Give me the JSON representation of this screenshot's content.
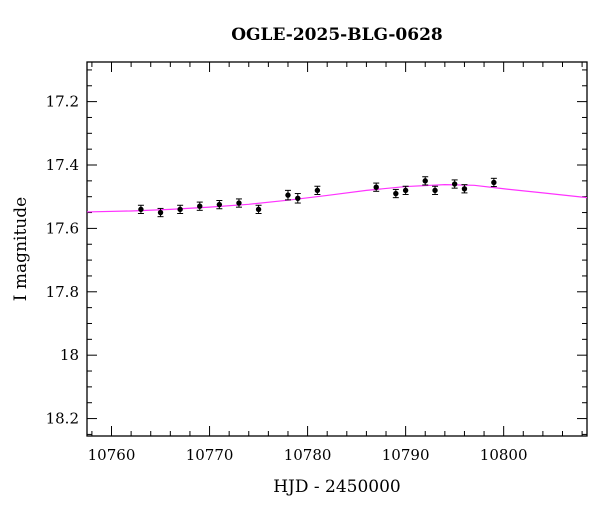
{
  "chart_data": {
    "type": "scatter",
    "title": "OGLE-2025-BLG-0628",
    "xlabel": "HJD - 2450000",
    "ylabel": "I magnitude",
    "xlim": [
      10757.5,
      10808.5
    ],
    "ylim": [
      18.255,
      17.075
    ],
    "y_inverted": true,
    "xticks": [
      10760,
      10770,
      10780,
      10790,
      10800
    ],
    "xtick_labels": [
      "10760",
      "10770",
      "10780",
      "10790",
      "10800"
    ],
    "yticks": [
      17.2,
      17.4,
      17.6,
      17.8,
      18,
      18.2
    ],
    "ytick_labels": [
      "17.2",
      "17.4",
      "17.6",
      "17.8",
      "18",
      "18.2"
    ],
    "grid": false,
    "series": [
      {
        "type": "scatter",
        "color": "#000000",
        "x": [
          10763.0,
          10765.0,
          10767.0,
          10769.0,
          10771.0,
          10773.0,
          10775.0,
          10778.0,
          10779.0,
          10781.0,
          10787.0,
          10789.0,
          10790.0,
          10792.0,
          10793.0,
          10795.0,
          10796.0,
          10799.0
        ],
        "y": [
          17.54,
          17.55,
          17.54,
          17.53,
          17.525,
          17.52,
          17.54,
          17.495,
          17.505,
          17.48,
          17.47,
          17.49,
          17.48,
          17.45,
          17.48,
          17.46,
          17.475,
          17.455
        ],
        "err": [
          0.013,
          0.013,
          0.013,
          0.013,
          0.013,
          0.013,
          0.013,
          0.015,
          0.015,
          0.013,
          0.013,
          0.013,
          0.013,
          0.013,
          0.013,
          0.013,
          0.013,
          0.013
        ]
      },
      {
        "type": "line",
        "color": "#ff33ff",
        "x": [
          10757.5,
          10762,
          10766,
          10770,
          10774,
          10778,
          10782,
          10786,
          10790,
          10794,
          10797,
          10800,
          10804,
          10808.5
        ],
        "y": [
          17.548,
          17.545,
          17.54,
          17.533,
          17.524,
          17.511,
          17.496,
          17.48,
          17.468,
          17.462,
          17.464,
          17.475,
          17.488,
          17.503
        ]
      }
    ]
  }
}
